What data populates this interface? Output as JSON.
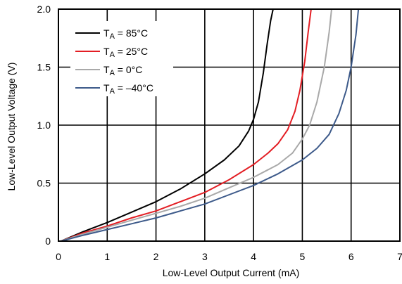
{
  "chart_data": {
    "type": "line",
    "title": "",
    "xlabel": "Low-Level Output Current (mA)",
    "ylabel": "Low-Level Output Voltage (V)",
    "xlim": [
      0,
      7
    ],
    "ylim": [
      0,
      2.0
    ],
    "x_ticks": [
      "0",
      "1",
      "2",
      "3",
      "4",
      "5",
      "6",
      "7"
    ],
    "y_ticks": [
      "0",
      "0.5",
      "1.0",
      "1.5",
      "2.0"
    ],
    "grid": true,
    "legend_position": "top-left",
    "series": [
      {
        "name_parts": [
          "T",
          "A",
          " = 85°C"
        ],
        "color": "#000000",
        "points": [
          [
            0.05,
            0
          ],
          [
            0.5,
            0.08
          ],
          [
            1,
            0.16
          ],
          [
            1.5,
            0.25
          ],
          [
            2,
            0.34
          ],
          [
            2.5,
            0.45
          ],
          [
            3,
            0.58
          ],
          [
            3.4,
            0.7
          ],
          [
            3.7,
            0.82
          ],
          [
            3.9,
            0.95
          ],
          [
            4.0,
            1.05
          ],
          [
            4.1,
            1.2
          ],
          [
            4.2,
            1.45
          ],
          [
            4.28,
            1.7
          ],
          [
            4.35,
            1.9
          ],
          [
            4.4,
            2.0
          ]
        ]
      },
      {
        "name_parts": [
          "T",
          "A",
          " = 25°C"
        ],
        "color": "#e31e24",
        "points": [
          [
            0.05,
            0
          ],
          [
            0.5,
            0.07
          ],
          [
            1,
            0.13
          ],
          [
            1.5,
            0.2
          ],
          [
            2,
            0.26
          ],
          [
            2.5,
            0.34
          ],
          [
            3,
            0.42
          ],
          [
            3.5,
            0.53
          ],
          [
            4,
            0.66
          ],
          [
            4.3,
            0.76
          ],
          [
            4.5,
            0.84
          ],
          [
            4.7,
            0.96
          ],
          [
            4.85,
            1.12
          ],
          [
            4.95,
            1.3
          ],
          [
            5.05,
            1.55
          ],
          [
            5.12,
            1.8
          ],
          [
            5.18,
            2.0
          ]
        ]
      },
      {
        "name_parts": [
          "T",
          "A",
          " = 0°C"
        ],
        "color": "#a9a9a9",
        "points": [
          [
            0.05,
            0
          ],
          [
            0.5,
            0.06
          ],
          [
            1,
            0.12
          ],
          [
            1.5,
            0.18
          ],
          [
            2,
            0.24
          ],
          [
            2.5,
            0.3
          ],
          [
            3,
            0.37
          ],
          [
            3.5,
            0.46
          ],
          [
            4,
            0.55
          ],
          [
            4.5,
            0.66
          ],
          [
            4.8,
            0.76
          ],
          [
            5.0,
            0.88
          ],
          [
            5.15,
            1.0
          ],
          [
            5.3,
            1.2
          ],
          [
            5.45,
            1.5
          ],
          [
            5.55,
            1.8
          ],
          [
            5.6,
            2.0
          ]
        ]
      },
      {
        "name_parts": [
          "T",
          "A",
          " = –40°C"
        ],
        "color": "#3d5a8a",
        "points": [
          [
            0.05,
            0
          ],
          [
            0.5,
            0.05
          ],
          [
            1,
            0.1
          ],
          [
            1.5,
            0.15
          ],
          [
            2,
            0.2
          ],
          [
            2.5,
            0.26
          ],
          [
            3,
            0.32
          ],
          [
            3.5,
            0.4
          ],
          [
            4,
            0.48
          ],
          [
            4.5,
            0.58
          ],
          [
            5,
            0.7
          ],
          [
            5.3,
            0.8
          ],
          [
            5.55,
            0.92
          ],
          [
            5.75,
            1.1
          ],
          [
            5.9,
            1.3
          ],
          [
            6.0,
            1.5
          ],
          [
            6.1,
            1.78
          ],
          [
            6.15,
            2.0
          ]
        ]
      }
    ]
  }
}
